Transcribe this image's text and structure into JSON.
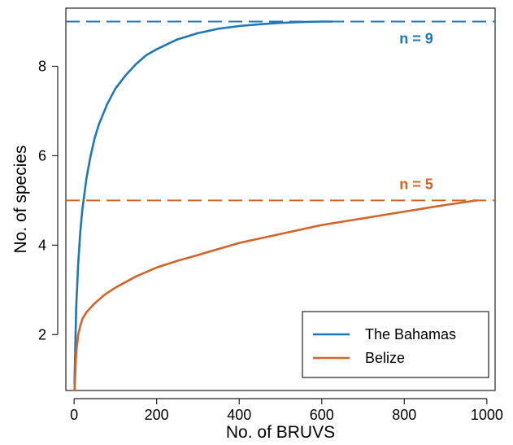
{
  "chart_data": {
    "type": "line",
    "title": "",
    "xlabel": "No. of BRUVS",
    "ylabel": "No. of species",
    "xlim": [
      -20,
      1020
    ],
    "ylim": [
      0.75,
      9.3
    ],
    "xticks": [
      0,
      200,
      400,
      600,
      800,
      1000
    ],
    "xtick_labels": [
      "0",
      "200",
      "400",
      "600",
      "800",
      "1000"
    ],
    "yticks": [
      2,
      4,
      6,
      8
    ],
    "ytick_labels": [
      "2",
      "4",
      "6",
      "8"
    ],
    "grid": false,
    "legend_position": "bottom-right",
    "series": [
      {
        "name": "The Bahamas",
        "color": "#1f77b4",
        "x": [
          1,
          5,
          10,
          15,
          20,
          30,
          40,
          50,
          60,
          80,
          100,
          125,
          150,
          175,
          200,
          250,
          300,
          350,
          400,
          450,
          500,
          550,
          600,
          625
        ],
        "y": [
          0.9,
          2.6,
          3.6,
          4.3,
          4.8,
          5.5,
          6.0,
          6.4,
          6.7,
          7.15,
          7.5,
          7.8,
          8.05,
          8.25,
          8.38,
          8.6,
          8.74,
          8.84,
          8.9,
          8.94,
          8.97,
          8.99,
          9.0,
          9.0
        ],
        "asymptote": 9,
        "asymptote_label": "n = 9"
      },
      {
        "name": "Belize",
        "color": "#d2642a",
        "x": [
          1,
          5,
          10,
          15,
          20,
          30,
          40,
          50,
          75,
          100,
          150,
          200,
          250,
          300,
          400,
          500,
          600,
          700,
          800,
          900,
          975
        ],
        "y": [
          0.75,
          1.6,
          2.0,
          2.2,
          2.35,
          2.5,
          2.6,
          2.7,
          2.9,
          3.05,
          3.3,
          3.5,
          3.65,
          3.78,
          4.05,
          4.25,
          4.45,
          4.6,
          4.75,
          4.9,
          5.0
        ],
        "asymptote": 5,
        "asymptote_label": "n = 5"
      }
    ]
  }
}
